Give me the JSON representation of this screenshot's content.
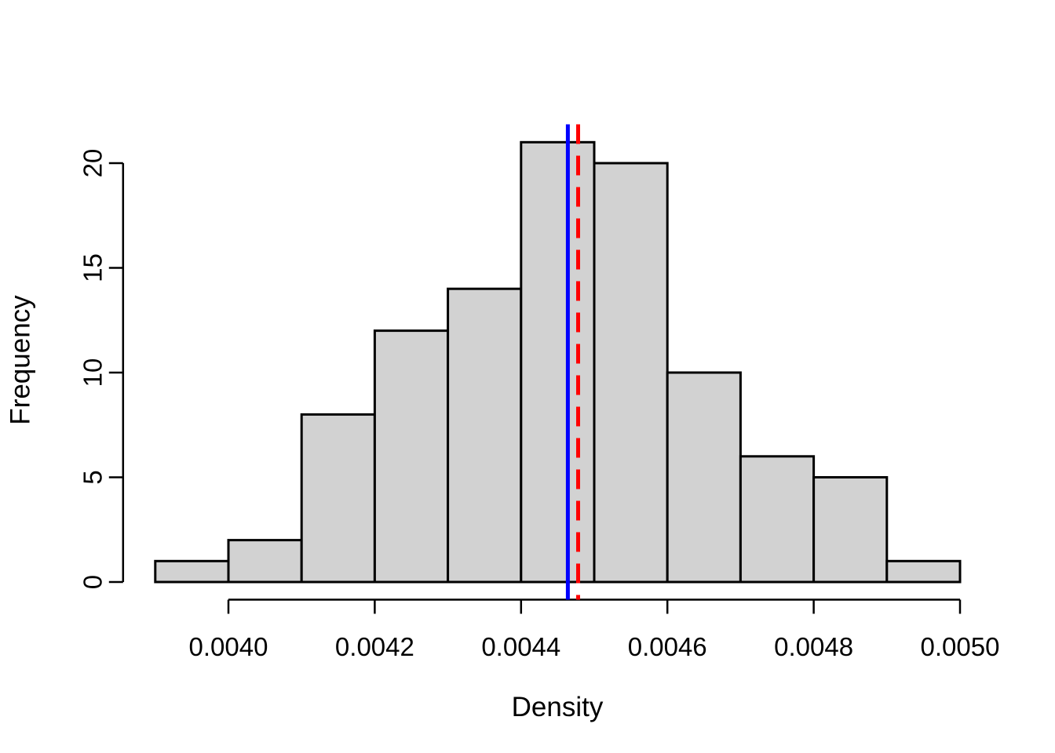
{
  "figure": {
    "background": "#ffffff",
    "title": ""
  },
  "chart_data": {
    "type": "bar",
    "subtype": "histogram",
    "title": "",
    "xlabel": "Density",
    "ylabel": "Frequency",
    "bin_start": 0.0039,
    "bin_width": 0.0001,
    "bin_edges": [
      0.0039,
      0.004,
      0.0041,
      0.0042,
      0.0043,
      0.0044,
      0.0045,
      0.0046,
      0.0047,
      0.0048,
      0.0049,
      0.005
    ],
    "categories": [
      "0.0039-0.0040",
      "0.0040-0.0041",
      "0.0041-0.0042",
      "0.0042-0.0043",
      "0.0043-0.0044",
      "0.0044-0.0045",
      "0.0045-0.0046",
      "0.0046-0.0047",
      "0.0047-0.0048",
      "0.0048-0.0049",
      "0.0049-0.0050"
    ],
    "values": [
      1,
      2,
      8,
      12,
      14,
      21,
      20,
      10,
      6,
      5,
      1
    ],
    "xlim": [
      0.0039,
      0.005
    ],
    "ylim": [
      0,
      21
    ],
    "x_ticks": [
      0.004,
      0.0042,
      0.0044,
      0.0046,
      0.0048,
      0.005
    ],
    "x_tick_labels": [
      "0.0040",
      "0.0042",
      "0.0044",
      "0.0046",
      "0.0048",
      "0.0050"
    ],
    "y_ticks": [
      0,
      5,
      10,
      15,
      20
    ],
    "y_tick_labels": [
      "0",
      "5",
      "10",
      "15",
      "20"
    ],
    "grid": false,
    "legend": "none",
    "bar_fill": "#d2d2d2",
    "bar_border": "#000000",
    "axis_color": "#000000",
    "vlines": [
      {
        "x": 0.004464,
        "color": "#0000ff",
        "style": "solid",
        "name": "blue-solid-line"
      },
      {
        "x": 0.004478,
        "color": "#ff0000",
        "style": "dashed",
        "name": "red-dashed-line"
      }
    ]
  }
}
